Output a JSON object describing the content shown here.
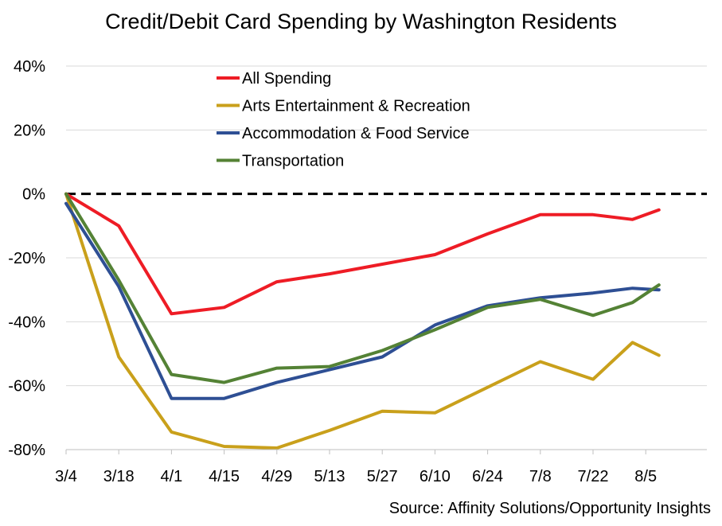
{
  "chart_data": {
    "type": "line",
    "title": "Credit/Debit Card Spending by Washington Residents",
    "source": "Source: Affinity Solutions/Opportunity Insights",
    "x": [
      "3/4",
      "3/18",
      "4/1",
      "4/15",
      "4/29",
      "5/13",
      "5/27",
      "6/10",
      "6/24",
      "7/8",
      "7/22",
      "8/5"
    ],
    "x_label_values": [
      0,
      1,
      2,
      3,
      4,
      5,
      6,
      7,
      8,
      9,
      10,
      11
    ],
    "y_ticks": [
      40,
      20,
      0,
      -20,
      -40,
      -60,
      -80
    ],
    "y_tick_labels": [
      "40%",
      "20%",
      "0%",
      "-20%",
      "-40%",
      "-60%",
      "-80%"
    ],
    "ylim": [
      -80,
      40
    ],
    "xlim": [
      0,
      11.25
    ],
    "grid": "horizontal",
    "legend_position": "top-left",
    "reference_line": {
      "y": 0,
      "style": "dashed",
      "color": "#000000"
    },
    "series": [
      {
        "name": "All Spending",
        "color": "#ee1c25",
        "x": [
          0,
          1,
          2,
          3,
          4,
          5,
          6,
          7,
          8,
          9,
          10,
          10.75,
          11.25
        ],
        "values": [
          0,
          -10,
          -37.5,
          -35.5,
          -27.5,
          -25,
          -22,
          -19,
          -12.5,
          -6.5,
          -6.5,
          -8,
          -5
        ]
      },
      {
        "name": "Arts Entertainment & Recreation",
        "color": "#c9a01b",
        "x": [
          0,
          1,
          2,
          3,
          4,
          5,
          6,
          7,
          8,
          9,
          10,
          10.75,
          11.25
        ],
        "values": [
          0,
          -51,
          -74.5,
          -79,
          -79.5,
          -74,
          -68,
          -68.5,
          -60.5,
          -52.5,
          -58,
          -46.5,
          -50.5
        ]
      },
      {
        "name": "Accommodation & Food Service",
        "color": "#2e4f94",
        "x": [
          0,
          1,
          2,
          3,
          4,
          5,
          6,
          7,
          8,
          9,
          10,
          10.75,
          11.25
        ],
        "values": [
          -3,
          -29,
          -64,
          -64,
          -59,
          -55,
          -51,
          -41,
          -35,
          -32.5,
          -31,
          -29.5,
          -30
        ]
      },
      {
        "name": "Transportation",
        "color": "#548235",
        "x": [
          0,
          1,
          2,
          3,
          4,
          5,
          6,
          7,
          8,
          9,
          10,
          10.75,
          11.25
        ],
        "values": [
          0,
          -27,
          -56.5,
          -59,
          -54.5,
          -54,
          -49,
          -42.5,
          -35.5,
          -33,
          -38,
          -34,
          -28.5
        ]
      }
    ]
  }
}
